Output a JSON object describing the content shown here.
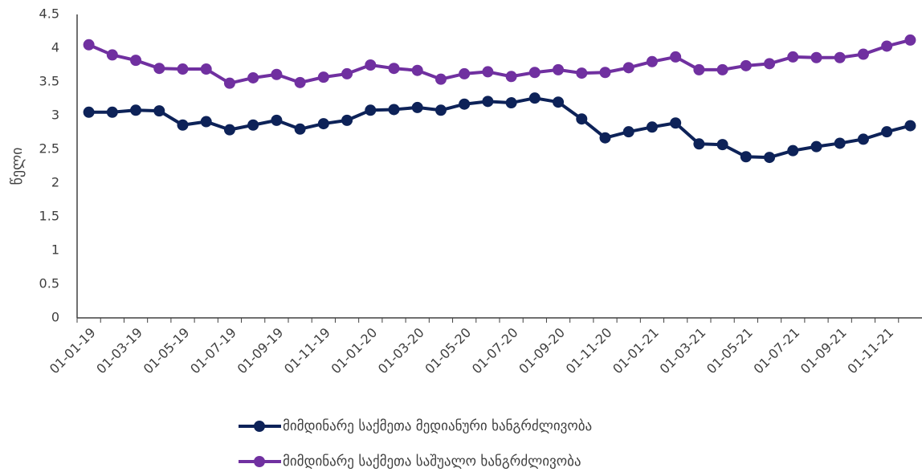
{
  "chart_data": {
    "type": "line",
    "y_label": "წელი",
    "categories": [
      "01-01-19",
      null,
      "01-03-19",
      null,
      "01-05-19",
      null,
      "01-07-19",
      null,
      "01-09-19",
      null,
      "01-11-19",
      null,
      "01-01-20",
      null,
      "01-03-20",
      null,
      "01-05-20",
      null,
      "01-07-20",
      null,
      "01-09-20",
      null,
      "01-11-20",
      null,
      "01-01-21",
      null,
      "01-03-21",
      null,
      "01-05-21",
      null,
      "01-07-21",
      null,
      "01-09-21",
      null,
      "01-11-21",
      null
    ],
    "series": [
      {
        "name": "მიმდინარე საქმეთა მედიანური ხანგრძლივობა",
        "color": "#0d2258",
        "values": [
          3.05,
          3.05,
          3.08,
          3.07,
          2.86,
          2.91,
          2.79,
          2.86,
          2.93,
          2.8,
          2.88,
          2.93,
          3.08,
          3.09,
          3.12,
          3.08,
          3.17,
          3.21,
          3.19,
          3.26,
          3.2,
          2.95,
          2.67,
          2.76,
          2.83,
          2.89,
          2.58,
          2.57,
          2.39,
          2.38,
          2.48,
          2.54,
          2.59,
          2.65,
          2.76,
          2.85
        ]
      },
      {
        "name": "მიმდინარე საქმეთა საშუალო ხანგრძლივობა",
        "color": "#7030a0",
        "values": [
          4.05,
          3.9,
          3.82,
          3.7,
          3.69,
          3.69,
          3.48,
          3.56,
          3.61,
          3.49,
          3.57,
          3.62,
          3.75,
          3.7,
          3.67,
          3.54,
          3.62,
          3.65,
          3.58,
          3.64,
          3.68,
          3.63,
          3.64,
          3.71,
          3.8,
          3.87,
          3.68,
          3.68,
          3.74,
          3.77,
          3.87,
          3.86,
          3.86,
          3.91,
          4.03,
          4.12
        ]
      }
    ],
    "ylim": [
      0,
      4.5
    ],
    "yticks": [
      0,
      0.5,
      1,
      1.5,
      2,
      2.5,
      3,
      3.5,
      4,
      4.5
    ],
    "grid": false
  }
}
